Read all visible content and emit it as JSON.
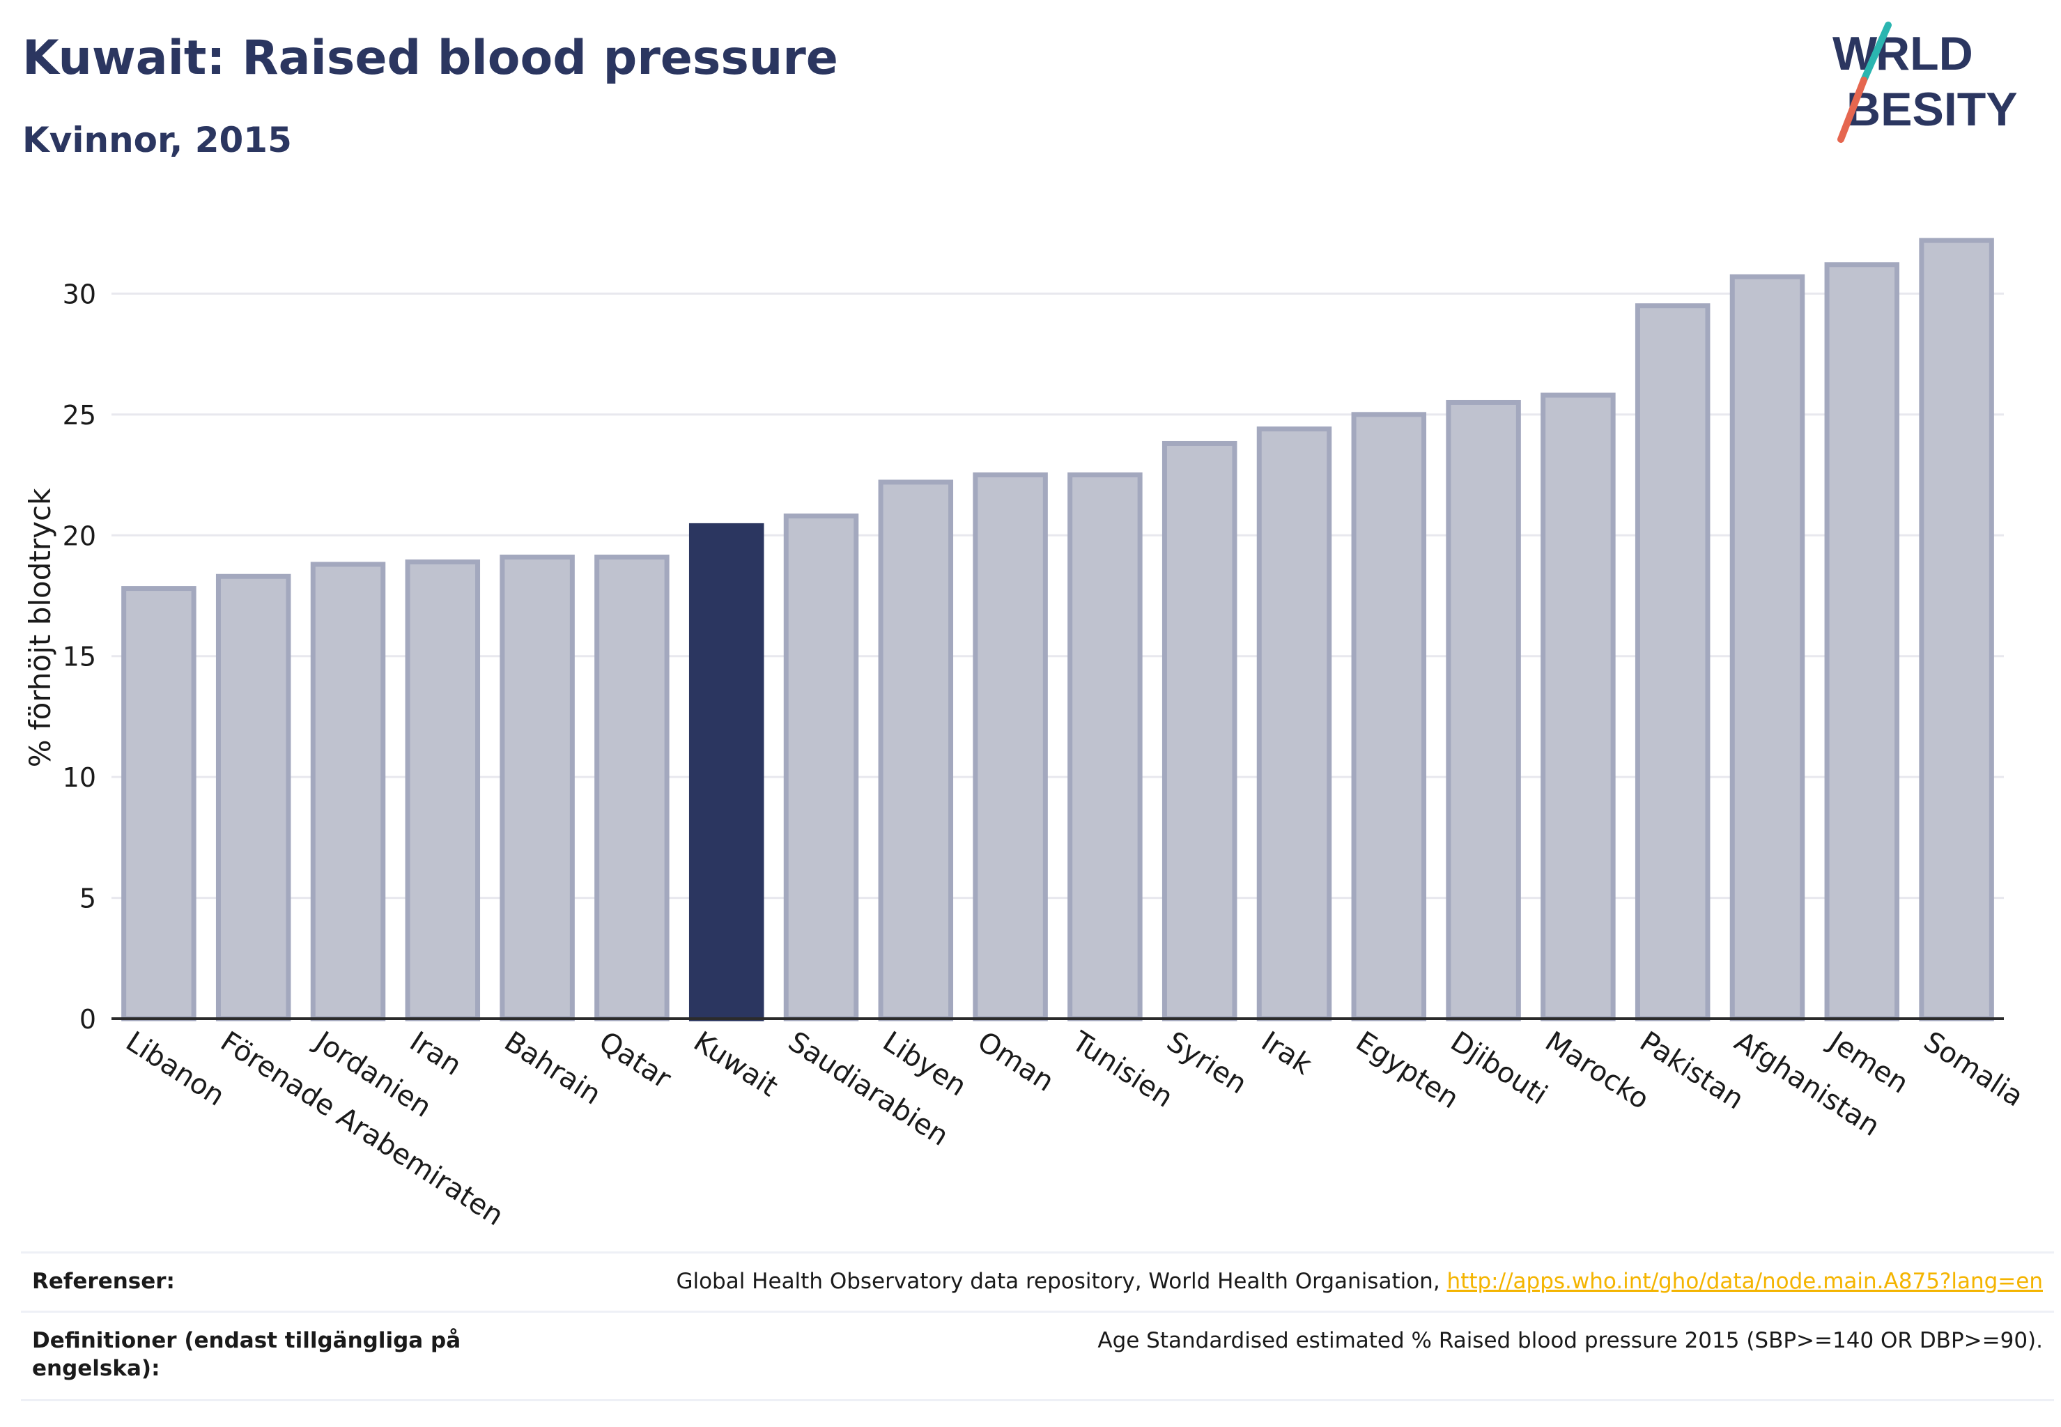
{
  "header": {
    "title": "Kuwait: Raised blood pressure",
    "subtitle": "Kvinnor, 2015"
  },
  "logo": {
    "line1": "WORLD",
    "line2": "OBESITY"
  },
  "chart_data": {
    "type": "bar",
    "categories": [
      "Libanon",
      "Förenade Arabemiraten",
      "Jordanien",
      "Iran",
      "Bahrain",
      "Qatar",
      "Kuwait",
      "Saudiarabien",
      "Libyen",
      "Oman",
      "Tunisien",
      "Syrien",
      "Irak",
      "Egypten",
      "Djibouti",
      "Marocko",
      "Pakistan",
      "Afghanistan",
      "Jemen",
      "Somalia"
    ],
    "values": [
      17.8,
      18.3,
      18.8,
      18.9,
      19.1,
      19.1,
      20.4,
      20.8,
      22.2,
      22.5,
      22.5,
      23.8,
      24.4,
      25.0,
      25.5,
      25.8,
      29.5,
      30.7,
      31.2,
      32.2
    ],
    "highlight": "Kuwait",
    "ylabel": "% förhöjt blodtryck",
    "yticks": [
      0,
      5,
      10,
      15,
      20,
      25,
      30
    ],
    "ylim": [
      0,
      33.5
    ],
    "grid": true,
    "colors": {
      "bar": "#bfc2cf",
      "bar_edge": "#a3a8be",
      "highlight": "#2b3660",
      "grid": "#e8e8ee",
      "axis": "#2b2b2b"
    }
  },
  "references": {
    "ref_label": "Referenser:",
    "ref_text": "Global Health Observatory data repository, World Health Organisation, ",
    "ref_link": "http://apps.who.int/gho/data/node.main.A875?lang=en",
    "def_label": "Definitioner (endast tillgängliga på engelska):",
    "def_text": "Age Standardised estimated % Raised blood pressure 2015 (SBP>=140 OR DBP>=90)."
  }
}
